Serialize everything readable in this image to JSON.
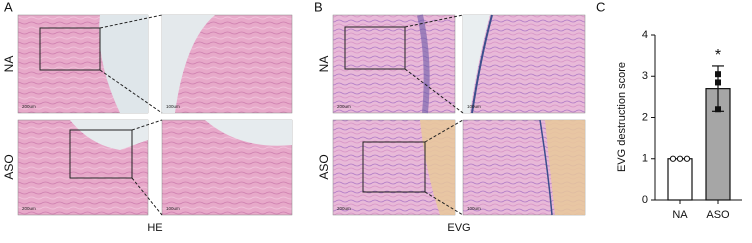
{
  "panels": [
    {
      "label": "A",
      "stain": "HE",
      "rows": [
        {
          "label": "NA",
          "scale_bars": [
            "200um",
            "100um"
          ]
        },
        {
          "label": "ASO",
          "scale_bars": [
            "200um",
            "100um"
          ]
        }
      ]
    },
    {
      "label": "B",
      "stain": "EVG",
      "rows": [
        {
          "label": "NA",
          "scale_bars": [
            "200um",
            "100um"
          ]
        },
        {
          "label": "ASO",
          "scale_bars": [
            "200um",
            "100um"
          ]
        }
      ]
    },
    {
      "label": "C"
    }
  ],
  "chart_data": {
    "type": "bar",
    "y_label": "EVG destruction score",
    "categories": [
      "NA",
      "ASO"
    ],
    "values": [
      1,
      2.7
    ],
    "errors": [
      null,
      0.55
    ],
    "points": [
      [
        1,
        1,
        1
      ],
      [
        3.05,
        2.85,
        2.2
      ]
    ],
    "colors": [
      "#ffffff",
      "#a6a6a6"
    ],
    "annotation": "*",
    "ylim": [
      0,
      4
    ],
    "yticks": [
      0,
      1,
      2,
      3,
      4
    ]
  }
}
